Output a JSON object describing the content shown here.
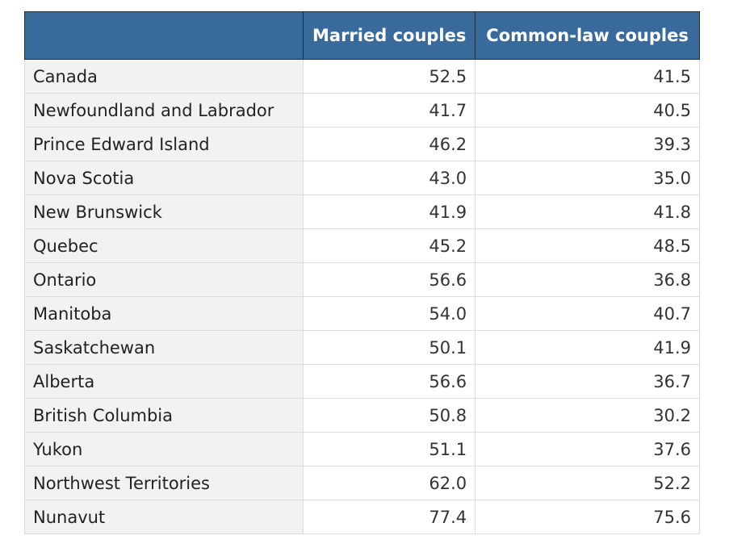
{
  "table": {
    "header_color": "#386a9c",
    "columns": [
      "",
      "Married couples",
      "Common-law couples"
    ],
    "rows": [
      {
        "region": "Canada",
        "married": "52.5",
        "common_law": "41.5"
      },
      {
        "region": "Newfoundland and Labrador",
        "married": "41.7",
        "common_law": "40.5"
      },
      {
        "region": "Prince Edward Island",
        "married": "46.2",
        "common_law": "39.3"
      },
      {
        "region": "Nova Scotia",
        "married": "43.0",
        "common_law": "35.0"
      },
      {
        "region": "New Brunswick",
        "married": "41.9",
        "common_law": "41.8"
      },
      {
        "region": "Quebec",
        "married": "45.2",
        "common_law": "48.5"
      },
      {
        "region": "Ontario",
        "married": "56.6",
        "common_law": "36.8"
      },
      {
        "region": "Manitoba",
        "married": "54.0",
        "common_law": "40.7"
      },
      {
        "region": "Saskatchewan",
        "married": "50.1",
        "common_law": "41.9"
      },
      {
        "region": "Alberta",
        "married": "56.6",
        "common_law": "36.7"
      },
      {
        "region": "British Columbia",
        "married": "50.8",
        "common_law": "30.2"
      },
      {
        "region": "Yukon",
        "married": "51.1",
        "common_law": "37.6"
      },
      {
        "region": "Northwest Territories",
        "married": "62.0",
        "common_law": "52.2"
      },
      {
        "region": "Nunavut",
        "married": "77.4",
        "common_law": "75.6"
      }
    ]
  }
}
